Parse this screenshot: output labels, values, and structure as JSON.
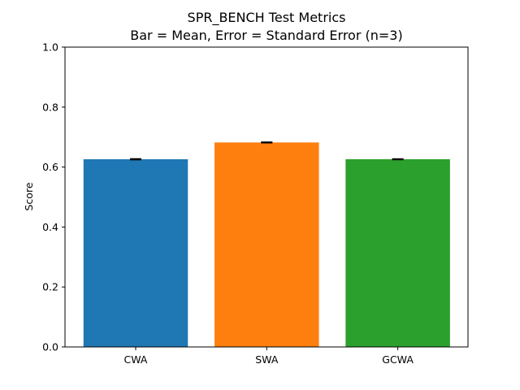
{
  "chart_data": {
    "type": "bar",
    "title_line1": "SPR_BENCH Test Metrics",
    "title_line2": "Bar = Mean, Error = Standard Error (n=3)",
    "xlabel": "",
    "ylabel": "Score",
    "ylim": [
      0,
      1.0
    ],
    "yticks": [
      "0.0",
      "0.2",
      "0.4",
      "0.6",
      "0.8",
      "1.0"
    ],
    "categories": [
      "CWA",
      "SWA",
      "GCWA"
    ],
    "values": [
      0.626,
      0.682,
      0.626
    ],
    "errors": [
      0.0015,
      0.0012,
      0.0012
    ],
    "colors": [
      "#1f77b4",
      "#ff7f0e",
      "#2ca02c"
    ],
    "grid": false,
    "legend": "none"
  }
}
